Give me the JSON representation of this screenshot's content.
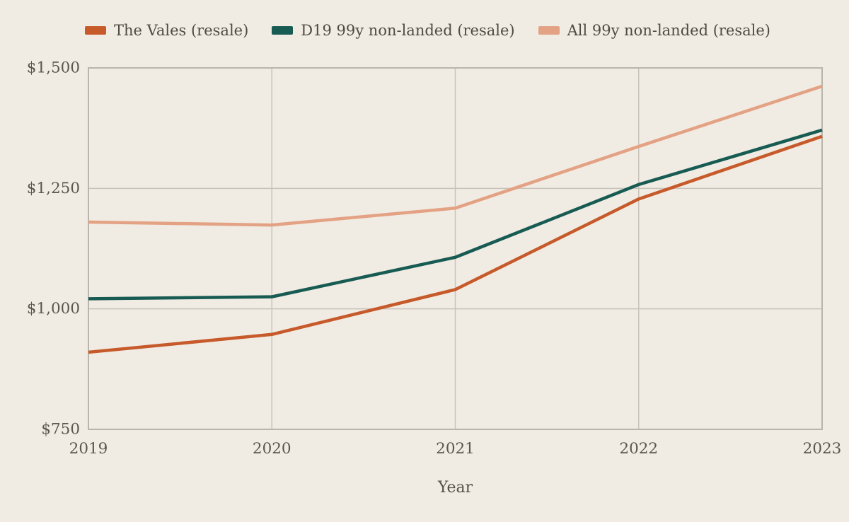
{
  "colors": {
    "background": "#f1ece3",
    "grid": "#c8c3ba",
    "plot_border": "#bab5ac",
    "tick_text": "#5b574f",
    "legend_text": "#4e4b45",
    "axis_title_text": "#55514b"
  },
  "chart_data": {
    "type": "line",
    "title": "",
    "xlabel": "Year",
    "ylabel": "",
    "x": [
      2019,
      2020,
      2021,
      2022,
      2023
    ],
    "xtick_labels": [
      "2019",
      "2020",
      "2021",
      "2022",
      "2023"
    ],
    "ylim": [
      750,
      1500
    ],
    "yticks": [
      750,
      1000,
      1250,
      1500
    ],
    "ytick_labels": [
      "$750",
      "$1,000",
      "$1,250",
      "$1,500"
    ],
    "grid": true,
    "legend_position": "top",
    "series": [
      {
        "name": "The Vales (resale)",
        "color": "#c65a2a",
        "values": [
          910,
          947,
          1040,
          1228,
          1358
        ]
      },
      {
        "name": "D19 99y non-landed (resale)",
        "color": "#175b53",
        "values": [
          1021,
          1025,
          1107,
          1258,
          1371
        ]
      },
      {
        "name": "All 99y non-landed (resale)",
        "color": "#e4a285",
        "values": [
          1180,
          1174,
          1209,
          1337,
          1462
        ]
      }
    ]
  }
}
